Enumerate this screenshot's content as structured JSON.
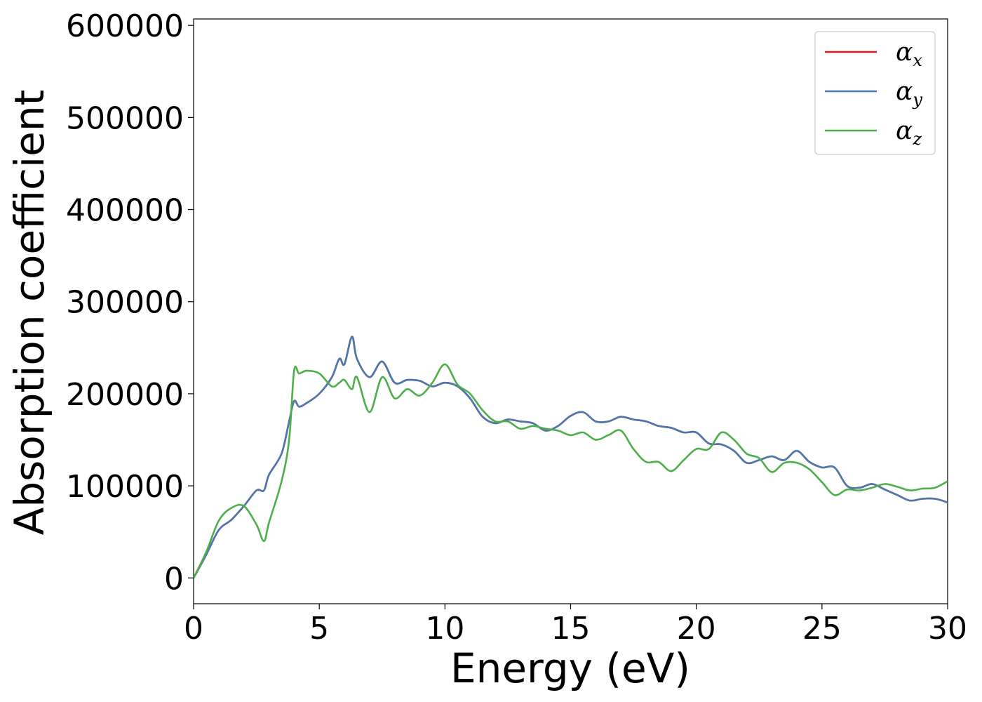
{
  "chart_data": {
    "type": "line",
    "xlabel": "Energy (eV)",
    "ylabel": "Absorption coefficient",
    "xlim": [
      0,
      30
    ],
    "ylim": [
      -28000,
      607000
    ],
    "xticks": [
      0,
      5,
      10,
      15,
      20,
      25,
      30
    ],
    "xtick_labels": [
      "0",
      "5",
      "10",
      "15",
      "20",
      "25",
      "30"
    ],
    "yticks": [
      0,
      100000,
      200000,
      300000,
      400000,
      500000,
      600000
    ],
    "ytick_labels": [
      "0",
      "100000",
      "200000",
      "300000",
      "400000",
      "500000",
      "600000"
    ],
    "grid": false,
    "legend_position": "top-right",
    "x": [
      0,
      0.5,
      1.0,
      1.5,
      2.0,
      2.5,
      2.8,
      3.0,
      3.5,
      3.8,
      4.0,
      4.2,
      4.5,
      5.0,
      5.5,
      5.8,
      6.0,
      6.3,
      6.5,
      7.0,
      7.5,
      8.0,
      8.5,
      9.0,
      9.5,
      10.0,
      10.5,
      11.0,
      11.5,
      12.0,
      12.5,
      13.0,
      13.5,
      14.0,
      14.5,
      15.0,
      15.5,
      16.0,
      16.5,
      17.0,
      17.5,
      18.0,
      18.5,
      19.0,
      19.5,
      20.0,
      20.5,
      21.0,
      21.5,
      22.0,
      22.5,
      23.0,
      23.5,
      24.0,
      24.5,
      25.0,
      25.5,
      26.0,
      26.5,
      27.0,
      27.5,
      28.0,
      28.5,
      29.0,
      29.5,
      30.0
    ],
    "series": [
      {
        "name": "α_x",
        "label_base": "α",
        "label_sub": "x",
        "color": "#e41a1c",
        "values": [
          0,
          25000,
          52000,
          63000,
          78000,
          95000,
          95000,
          112000,
          135000,
          170000,
          192000,
          186000,
          190000,
          200000,
          218000,
          238000,
          232000,
          262000,
          238000,
          218000,
          235000,
          212000,
          215000,
          214000,
          208000,
          212000,
          208000,
          195000,
          175000,
          168000,
          172000,
          170000,
          168000,
          160000,
          165000,
          176000,
          180000,
          170000,
          170000,
          175000,
          172000,
          170000,
          165000,
          163000,
          158000,
          158000,
          146000,
          145000,
          138000,
          125000,
          128000,
          132000,
          128000,
          138000,
          126000,
          120000,
          120000,
          100000,
          98000,
          102000,
          96000,
          90000,
          84000,
          86000,
          86000,
          82000
        ]
      },
      {
        "name": "α_y",
        "label_base": "α",
        "label_sub": "y",
        "color": "#4a78b0",
        "values": [
          0,
          25000,
          52000,
          63000,
          78000,
          95000,
          95000,
          112000,
          135000,
          170000,
          192000,
          186000,
          190000,
          200000,
          218000,
          238000,
          232000,
          262000,
          238000,
          218000,
          235000,
          212000,
          215000,
          214000,
          208000,
          212000,
          208000,
          195000,
          175000,
          168000,
          172000,
          170000,
          168000,
          160000,
          165000,
          176000,
          180000,
          170000,
          170000,
          175000,
          172000,
          170000,
          165000,
          163000,
          158000,
          158000,
          146000,
          145000,
          138000,
          125000,
          128000,
          132000,
          128000,
          138000,
          126000,
          120000,
          120000,
          100000,
          98000,
          102000,
          96000,
          90000,
          84000,
          86000,
          86000,
          82000
        ]
      },
      {
        "name": "α_z",
        "label_base": "α",
        "label_sub": "z",
        "color": "#4daf4a",
        "values": [
          0,
          28000,
          62000,
          76000,
          78000,
          58000,
          40000,
          60000,
          105000,
          150000,
          225000,
          222000,
          225000,
          222000,
          208000,
          212000,
          215000,
          205000,
          218000,
          180000,
          218000,
          195000,
          205000,
          198000,
          212000,
          232000,
          210000,
          200000,
          182000,
          170000,
          170000,
          162000,
          165000,
          162000,
          160000,
          155000,
          158000,
          150000,
          155000,
          160000,
          140000,
          126000,
          126000,
          116000,
          128000,
          140000,
          140000,
          158000,
          150000,
          135000,
          130000,
          115000,
          125000,
          125000,
          118000,
          104000,
          90000,
          96000,
          95000,
          98000,
          102000,
          99000,
          95000,
          97000,
          98000,
          105000
        ]
      }
    ]
  }
}
